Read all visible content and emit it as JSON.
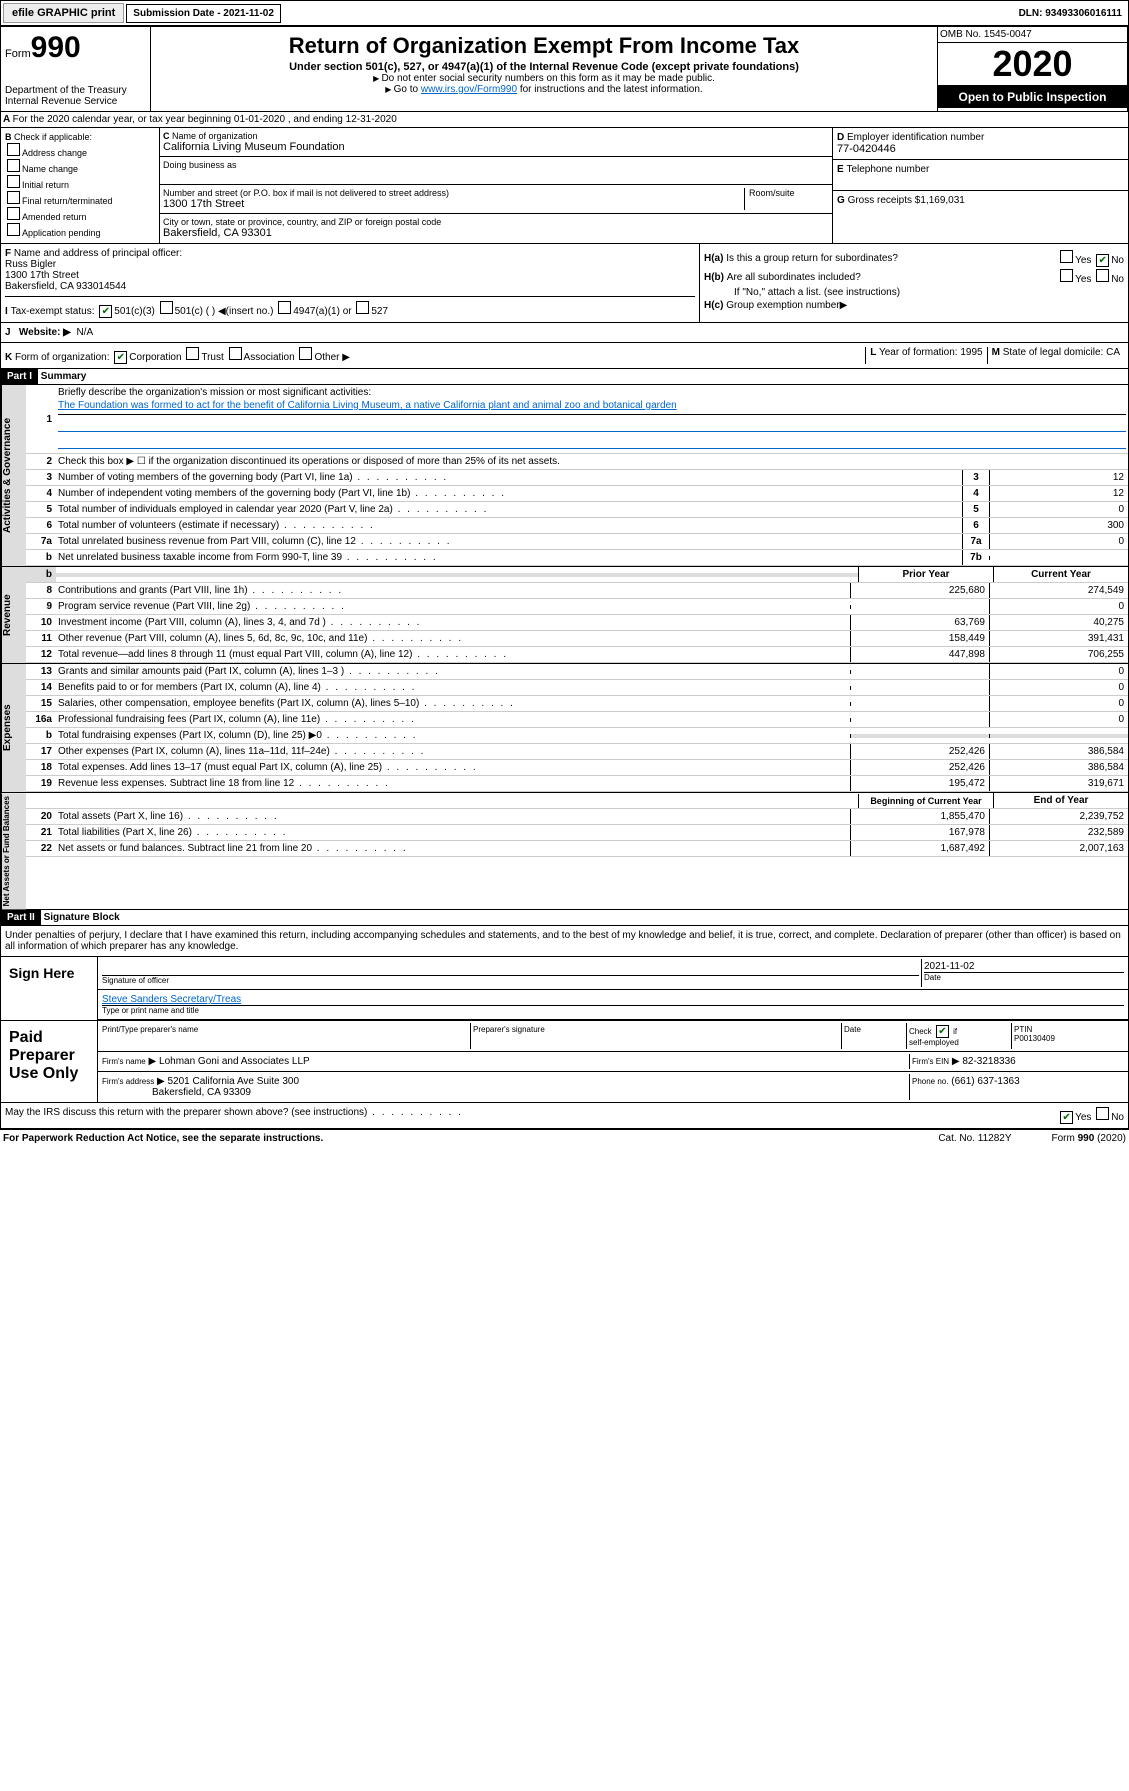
{
  "topbar": {
    "efile": "efile GRAPHIC print",
    "submission": "Submission Date - 2021-11-02",
    "dln": "DLN: 93493306016111"
  },
  "header": {
    "form": "Form",
    "num": "990",
    "dept": "Department of the Treasury Internal Revenue Service",
    "title": "Return of Organization Exempt From Income Tax",
    "subtitle": "Under section 501(c), 527, or 4947(a)(1) of the Internal Revenue Code (except private foundations)",
    "note1": "Do not enter social security numbers on this form as it may be made public.",
    "note2_pre": "Go to ",
    "note2_link": "www.irs.gov/Form990",
    "note2_post": " for instructions and the latest information.",
    "omb": "OMB No. 1545-0047",
    "year": "2020",
    "open": "Open to Public Inspection"
  },
  "A": "For the 2020 calendar year, or tax year beginning 01-01-2020     , and ending 12-31-2020",
  "B": {
    "label": "Check if applicable:",
    "opts": [
      "Address change",
      "Name change",
      "Initial return",
      "Final return/terminated",
      "Amended return",
      "Application pending"
    ]
  },
  "C": {
    "name_label": "Name of organization",
    "name": "California Living Museum Foundation",
    "dba_label": "Doing business as",
    "addr_label": "Number and street (or P.O. box if mail is not delivered to street address)",
    "room_label": "Room/suite",
    "addr": "1300 17th Street",
    "city_label": "City or town, state or province, country, and ZIP or foreign postal code",
    "city": "Bakersfield, CA  93301"
  },
  "D": {
    "label": "Employer identification number",
    "val": "77-0420446"
  },
  "E": {
    "label": "Telephone number"
  },
  "G": {
    "label": "Gross receipts $",
    "val": "1,169,031"
  },
  "F": {
    "label": "Name and address of principal officer:",
    "name": "Russ Bigler",
    "addr": "1300 17th Street",
    "city": "Bakersfield, CA  933014544"
  },
  "H": {
    "a": "Is this a group return for subordinates?",
    "b": "Are all subordinates included?",
    "note": "If \"No,\" attach a list. (see instructions)",
    "c": "Group exemption number"
  },
  "I": {
    "label": "Tax-exempt status:",
    "opts": [
      "501(c)(3)",
      "501(c) (  ) ◀(insert no.)",
      "4947(a)(1) or",
      "527"
    ]
  },
  "J": {
    "label": "Website:",
    "val": "N/A"
  },
  "K": {
    "label": "Form of organization:",
    "opts": [
      "Corporation",
      "Trust",
      "Association",
      "Other"
    ]
  },
  "L": {
    "label": "Year of formation:",
    "val": "1995"
  },
  "M": {
    "label": "State of legal domicile:",
    "val": "CA"
  },
  "part1": {
    "title": "Part I",
    "subtitle": "Summary"
  },
  "gov": {
    "label": "Activities & Governance",
    "l1": "Briefly describe the organization's mission or most significant activities:",
    "l1v": "The Foundation was formed to act for the benefit of California Living Museum, a native California plant and animal zoo and botanical garden",
    "l2": "Check this box ▶ ☐  if the organization discontinued its operations or disposed of more than 25% of its net assets.",
    "lines": [
      {
        "n": "3",
        "t": "Number of voting members of the governing body (Part VI, line 1a)",
        "nb": "3",
        "v": "12"
      },
      {
        "n": "4",
        "t": "Number of independent voting members of the governing body (Part VI, line 1b)",
        "nb": "4",
        "v": "12"
      },
      {
        "n": "5",
        "t": "Total number of individuals employed in calendar year 2020 (Part V, line 2a)",
        "nb": "5",
        "v": "0"
      },
      {
        "n": "6",
        "t": "Total number of volunteers (estimate if necessary)",
        "nb": "6",
        "v": "300"
      },
      {
        "n": "7a",
        "t": "Total unrelated business revenue from Part VIII, column (C), line 12",
        "nb": "7a",
        "v": "0"
      },
      {
        "n": "b",
        "t": "Net unrelated business taxable income from Form 990-T, line 39",
        "nb": "7b",
        "v": ""
      }
    ]
  },
  "rev": {
    "label": "Revenue",
    "hdr": {
      "prior": "Prior Year",
      "curr": "Current Year"
    },
    "lines": [
      {
        "n": "8",
        "t": "Contributions and grants (Part VIII, line 1h)",
        "p": "225,680",
        "c": "274,549"
      },
      {
        "n": "9",
        "t": "Program service revenue (Part VIII, line 2g)",
        "p": "",
        "c": "0"
      },
      {
        "n": "10",
        "t": "Investment income (Part VIII, column (A), lines 3, 4, and 7d )",
        "p": "63,769",
        "c": "40,275"
      },
      {
        "n": "11",
        "t": "Other revenue (Part VIII, column (A), lines 5, 6d, 8c, 9c, 10c, and 11e)",
        "p": "158,449",
        "c": "391,431"
      },
      {
        "n": "12",
        "t": "Total revenue—add lines 8 through 11 (must equal Part VIII, column (A), line 12)",
        "p": "447,898",
        "c": "706,255"
      }
    ]
  },
  "exp": {
    "label": "Expenses",
    "lines": [
      {
        "n": "13",
        "t": "Grants and similar amounts paid (Part IX, column (A), lines 1–3 )",
        "p": "",
        "c": "0"
      },
      {
        "n": "14",
        "t": "Benefits paid to or for members (Part IX, column (A), line 4)",
        "p": "",
        "c": "0"
      },
      {
        "n": "15",
        "t": "Salaries, other compensation, employee benefits (Part IX, column (A), lines 5–10)",
        "p": "",
        "c": "0"
      },
      {
        "n": "16a",
        "t": "Professional fundraising fees (Part IX, column (A), line 11e)",
        "p": "",
        "c": "0"
      },
      {
        "n": "b",
        "t": "Total fundraising expenses (Part IX, column (D), line 25) ▶0",
        "p": "shade",
        "c": "shade"
      },
      {
        "n": "17",
        "t": "Other expenses (Part IX, column (A), lines 11a–11d, 11f–24e)",
        "p": "252,426",
        "c": "386,584"
      },
      {
        "n": "18",
        "t": "Total expenses. Add lines 13–17 (must equal Part IX, column (A), line 25)",
        "p": "252,426",
        "c": "386,584"
      },
      {
        "n": "19",
        "t": "Revenue less expenses. Subtract line 18 from line 12",
        "p": "195,472",
        "c": "319,671"
      }
    ]
  },
  "net": {
    "label": "Net Assets or Fund Balances",
    "hdr": {
      "prior": "Beginning of Current Year",
      "curr": "End of Year"
    },
    "lines": [
      {
        "n": "20",
        "t": "Total assets (Part X, line 16)",
        "p": "1,855,470",
        "c": "2,239,752"
      },
      {
        "n": "21",
        "t": "Total liabilities (Part X, line 26)",
        "p": "167,978",
        "c": "232,589"
      },
      {
        "n": "22",
        "t": "Net assets or fund balances. Subtract line 21 from line 20",
        "p": "1,687,492",
        "c": "2,007,163"
      }
    ]
  },
  "part2": {
    "title": "Part II",
    "subtitle": "Signature Block"
  },
  "perjury": "Under penalties of perjury, I declare that I have examined this return, including accompanying schedules and statements, and to the best of my knowledge and belief, it is true, correct, and complete. Declaration of preparer (other than officer) is based on all information of which preparer has any knowledge.",
  "sign": {
    "label": "Sign Here",
    "date": "2021-11-02",
    "sigoff": "Signature of officer",
    "datel": "Date",
    "name": "Steve Sanders Secretary/Treas",
    "namel": "Type or print name and title"
  },
  "paid": {
    "label": "Paid Preparer Use Only",
    "prepname": "Print/Type preparer's name",
    "prepsig": "Preparer's signature",
    "datel": "Date",
    "check": "Check",
    "self": "self-employed",
    "ptin": "PTIN",
    "ptinv": "P00130409",
    "firmname": "Firm's name",
    "firmnamev": "Lohman Goni and Associates LLP",
    "firmein": "Firm's EIN",
    "firmeinv": "82-3218336",
    "firmaddr": "Firm's address",
    "firmaddrv": "5201 California Ave Suite 300",
    "firmcity": "Bakersfield, CA  93309",
    "phone": "Phone no.",
    "phonev": "(661) 637-1363"
  },
  "discuss": "May the IRS discuss this return with the preparer shown above? (see instructions)",
  "footer": {
    "paperwork": "For Paperwork Reduction Act Notice, see the separate instructions.",
    "cat": "Cat. No. 11282Y",
    "form": "Form 990 (2020)"
  }
}
